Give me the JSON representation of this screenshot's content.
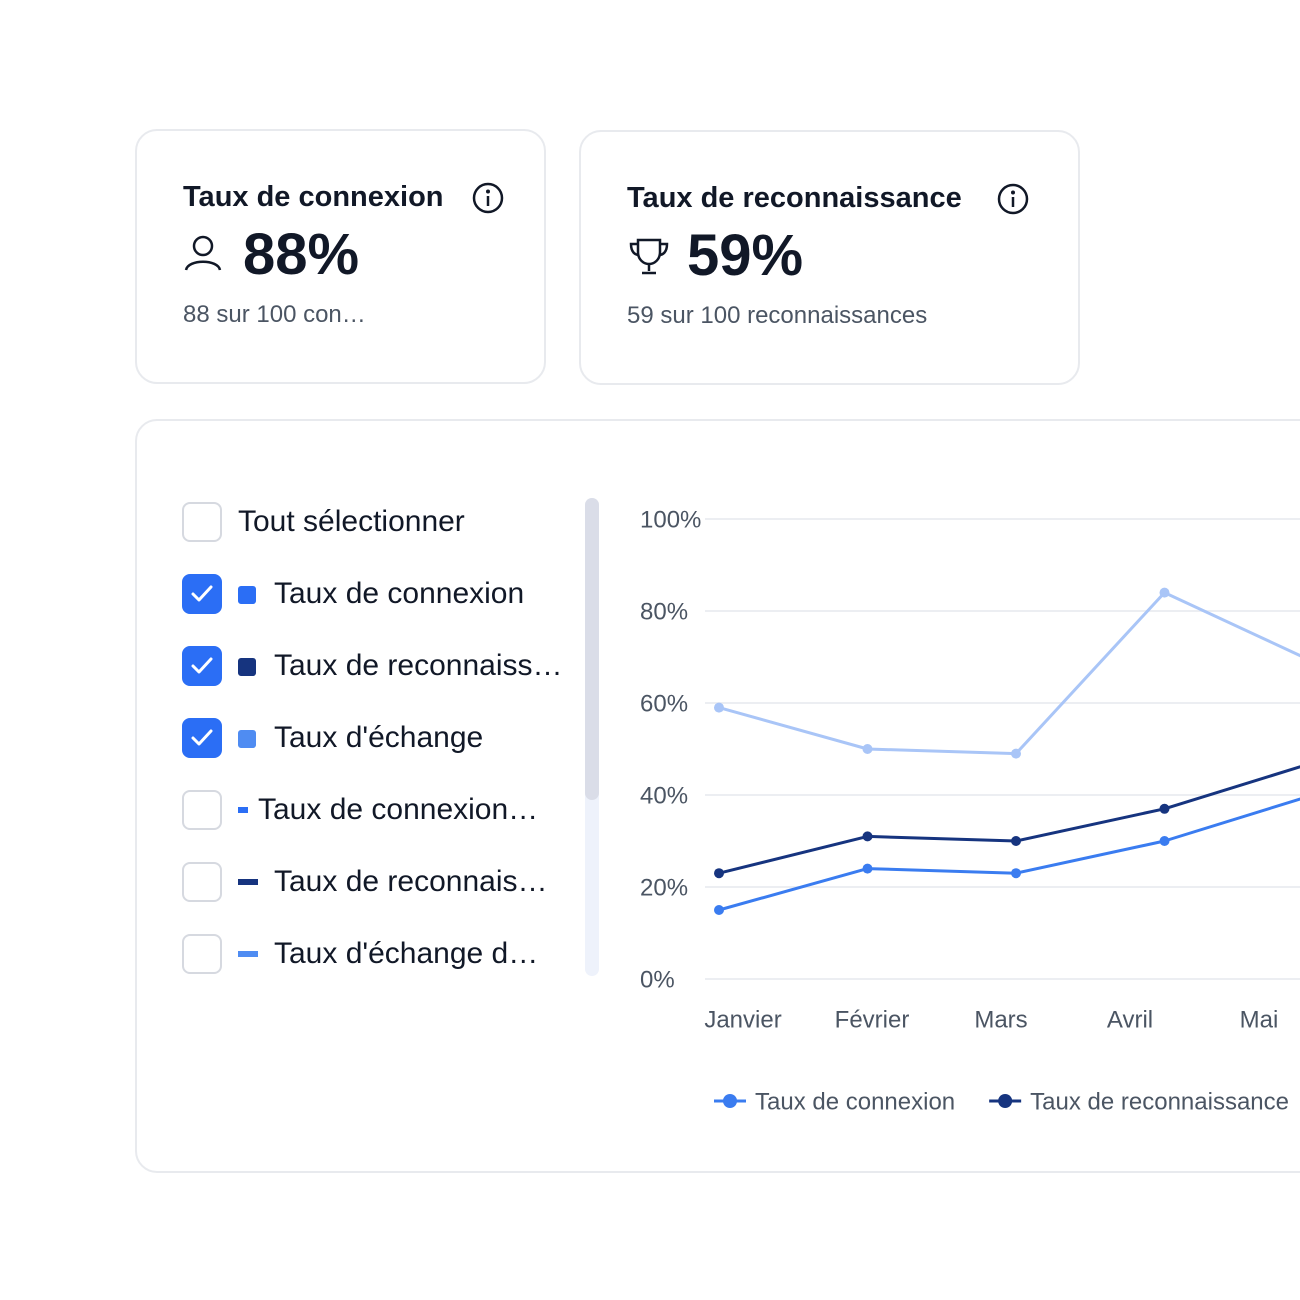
{
  "cards": [
    {
      "title": "Taux de connexion",
      "value": "88%",
      "subtitle": "88 sur 100 con…"
    },
    {
      "title": "Taux de reconnaissance",
      "value": "59%",
      "subtitle": "59 sur 100 reconnaissances"
    }
  ],
  "checklist": [
    {
      "label": "Tout sélectionner",
      "checked": false
    },
    {
      "label": "Taux de connexion",
      "checked": true,
      "marker": "square",
      "color": "#2b6ef5"
    },
    {
      "label": "Taux de reconnaiss…",
      "checked": true,
      "marker": "square",
      "color": "#16347f"
    },
    {
      "label": "Taux d'échange",
      "checked": true,
      "marker": "square",
      "color": "#4f8cf2"
    },
    {
      "label": "Taux de connexion…",
      "checked": false,
      "marker": "dash",
      "color": "#2b6ef5"
    },
    {
      "label": "Taux de reconnais…",
      "checked": false,
      "marker": "dash",
      "color": "#16347f"
    },
    {
      "label": "Taux d'échange d…",
      "checked": false,
      "marker": "dash",
      "color": "#4f8cf2"
    }
  ],
  "chart_data": {
    "type": "line",
    "categories": [
      "Janvier",
      "Février",
      "Mars",
      "Avril",
      "Mai"
    ],
    "series": [
      {
        "color": "#a9c5f7",
        "values": [
          59,
          50,
          49,
          84,
          69
        ]
      },
      {
        "name": "Taux de connexion",
        "color": "#3a7cf0",
        "values": [
          15,
          24,
          23,
          30,
          40
        ]
      },
      {
        "name": "Taux de reconnaissance",
        "color": "#16347f",
        "values": [
          23,
          31,
          30,
          37,
          47
        ]
      }
    ],
    "ylim": [
      0,
      100
    ],
    "yticks": [
      {
        "value": 0,
        "label": "0%"
      },
      {
        "value": 20,
        "label": "20%"
      },
      {
        "value": 40,
        "label": "40%"
      },
      {
        "value": 60,
        "label": "60%"
      },
      {
        "value": 80,
        "label": "80%"
      },
      {
        "value": 100,
        "label": "100%"
      }
    ],
    "grid": true
  }
}
